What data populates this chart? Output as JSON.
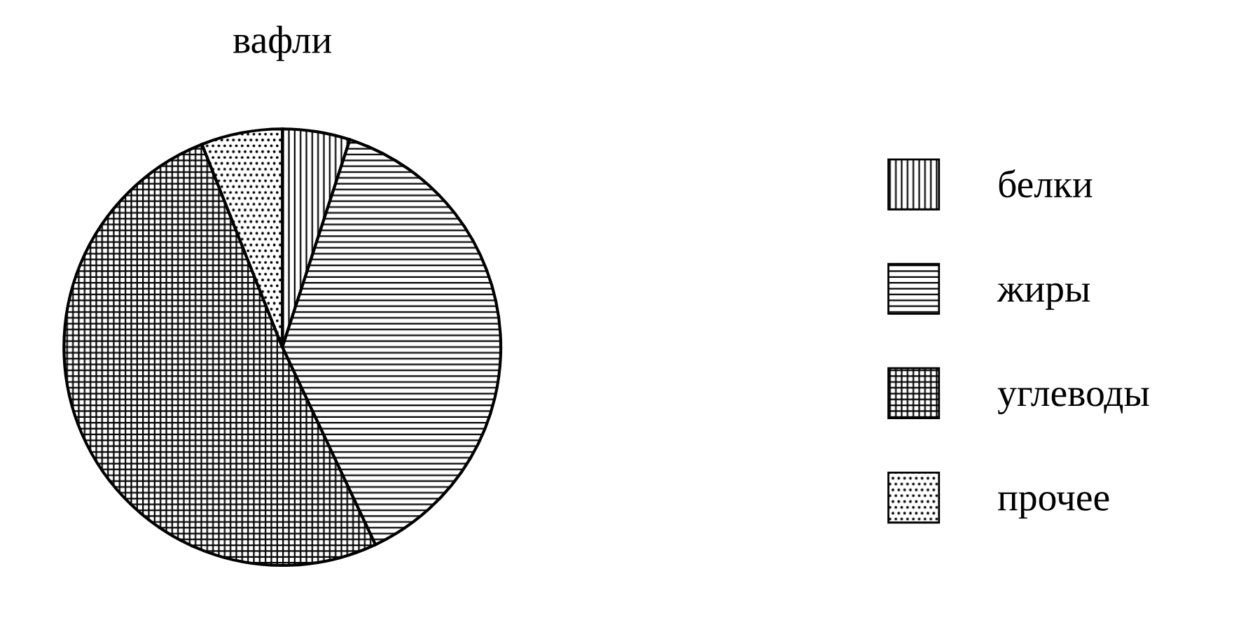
{
  "chart_data": {
    "type": "pie",
    "title": "вафли",
    "categories": [
      "белки",
      "жиры",
      "углеводы",
      "прочее"
    ],
    "values": [
      5,
      38,
      51,
      6
    ],
    "colors": [
      "#000000",
      "#000000",
      "#000000",
      "#000000"
    ],
    "legend": "right"
  }
}
